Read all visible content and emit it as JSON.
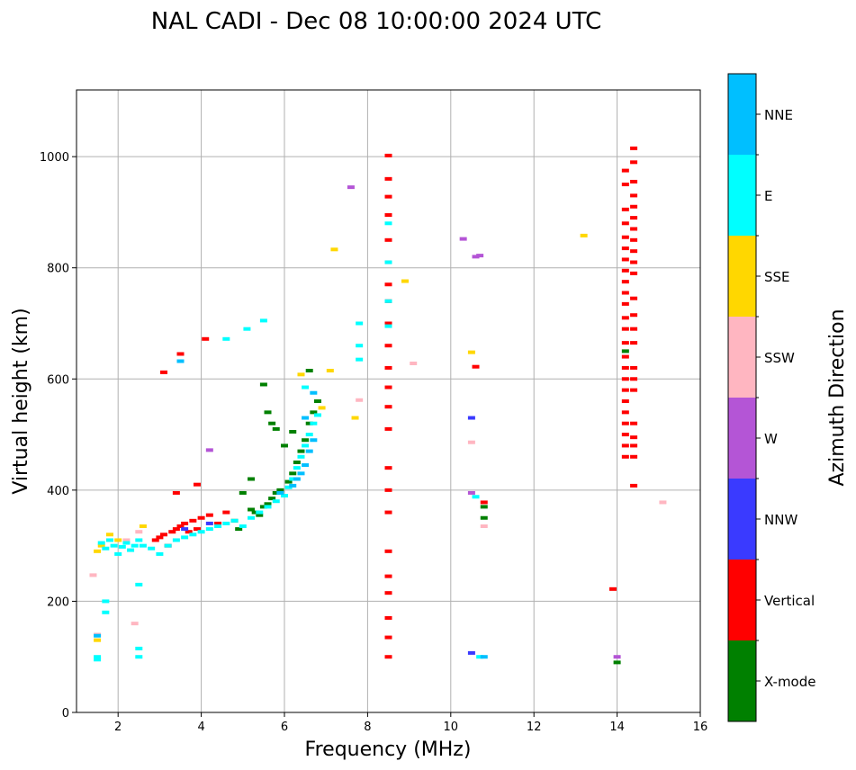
{
  "chart_data": {
    "type": "scatter",
    "title": "NAL CADI - Dec 08 10:00:00 2024 UTC",
    "xlabel": "Frequency (MHz)",
    "ylabel": "Virtual height (km)",
    "xlim": [
      1,
      16
    ],
    "ylim": [
      0,
      1120
    ],
    "xticks": [
      2,
      4,
      6,
      8,
      10,
      12,
      14,
      16
    ],
    "yticks": [
      0,
      200,
      400,
      600,
      800,
      1000
    ],
    "grid": true,
    "colorbar": {
      "label": "Azimuth Direction",
      "categories": [
        {
          "name": "X-mode",
          "color": "#008000"
        },
        {
          "name": "Vertical",
          "color": "#ff0000"
        },
        {
          "name": "NNW",
          "color": "#3a3aff"
        },
        {
          "name": "W",
          "color": "#b455d6"
        },
        {
          "name": "SSW",
          "color": "#ffb6c1"
        },
        {
          "name": "SSE",
          "color": "#ffd700"
        },
        {
          "name": "E",
          "color": "#00ffff"
        },
        {
          "name": "NNE",
          "color": "#00bfff"
        }
      ]
    },
    "series": [
      {
        "name": "X-mode",
        "points": [
          [
            5.2,
            365
          ],
          [
            5.3,
            360
          ],
          [
            5.4,
            355
          ],
          [
            5.5,
            370
          ],
          [
            5.6,
            375
          ],
          [
            5.7,
            385
          ],
          [
            5.8,
            395
          ],
          [
            5.9,
            400
          ],
          [
            6.1,
            415
          ],
          [
            6.2,
            430
          ],
          [
            6.3,
            450
          ],
          [
            6.4,
            470
          ],
          [
            6.5,
            490
          ],
          [
            6.6,
            520
          ],
          [
            6.7,
            540
          ],
          [
            6.8,
            560
          ],
          [
            5.5,
            590
          ],
          [
            5.6,
            540
          ],
          [
            5.7,
            520
          ],
          [
            5.8,
            510
          ],
          [
            6.0,
            480
          ],
          [
            6.6,
            615
          ],
          [
            6.2,
            505
          ],
          [
            4.8,
            345
          ],
          [
            4.9,
            330
          ],
          [
            5.0,
            395
          ],
          [
            5.2,
            420
          ],
          [
            10.8,
            370
          ],
          [
            10.8,
            350
          ],
          [
            14,
            90
          ],
          [
            14.2,
            650
          ]
        ]
      },
      {
        "name": "Vertical",
        "points": [
          [
            2.9,
            310
          ],
          [
            3.0,
            315
          ],
          [
            3.1,
            320
          ],
          [
            3.2,
            300
          ],
          [
            3.3,
            325
          ],
          [
            3.4,
            330
          ],
          [
            3.5,
            335
          ],
          [
            3.6,
            340
          ],
          [
            3.7,
            325
          ],
          [
            3.8,
            345
          ],
          [
            3.9,
            330
          ],
          [
            4.0,
            350
          ],
          [
            4.2,
            355
          ],
          [
            4.4,
            340
          ],
          [
            4.6,
            360
          ],
          [
            3.1,
            612
          ],
          [
            3.5,
            645
          ],
          [
            4.1,
            672
          ],
          [
            3.4,
            395
          ],
          [
            3.9,
            410
          ],
          [
            8.5,
            1002
          ],
          [
            8.5,
            960
          ],
          [
            8.5,
            928
          ],
          [
            8.5,
            895
          ],
          [
            8.5,
            850
          ],
          [
            8.5,
            810
          ],
          [
            8.5,
            770
          ],
          [
            8.5,
            740
          ],
          [
            8.5,
            700
          ],
          [
            8.5,
            660
          ],
          [
            8.5,
            620
          ],
          [
            8.5,
            585
          ],
          [
            8.5,
            550
          ],
          [
            8.5,
            510
          ],
          [
            8.5,
            440
          ],
          [
            8.5,
            400
          ],
          [
            8.5,
            360
          ],
          [
            8.5,
            290
          ],
          [
            8.5,
            245
          ],
          [
            8.5,
            215
          ],
          [
            8.5,
            170
          ],
          [
            8.5,
            135
          ],
          [
            8.5,
            100
          ],
          [
            10.6,
            622
          ],
          [
            10.8,
            378
          ],
          [
            13.9,
            222
          ],
          [
            14.2,
            975
          ],
          [
            14.2,
            950
          ],
          [
            14.2,
            905
          ],
          [
            14.2,
            880
          ],
          [
            14.2,
            855
          ],
          [
            14.2,
            835
          ],
          [
            14.2,
            815
          ],
          [
            14.2,
            795
          ],
          [
            14.2,
            775
          ],
          [
            14.2,
            755
          ],
          [
            14.2,
            735
          ],
          [
            14.2,
            710
          ],
          [
            14.2,
            690
          ],
          [
            14.2,
            665
          ],
          [
            14.2,
            640
          ],
          [
            14.2,
            620
          ],
          [
            14.2,
            600
          ],
          [
            14.2,
            580
          ],
          [
            14.2,
            560
          ],
          [
            14.2,
            540
          ],
          [
            14.2,
            520
          ],
          [
            14.2,
            500
          ],
          [
            14.2,
            480
          ],
          [
            14.2,
            460
          ],
          [
            14.4,
            1015
          ],
          [
            14.4,
            990
          ],
          [
            14.4,
            955
          ],
          [
            14.4,
            930
          ],
          [
            14.4,
            910
          ],
          [
            14.4,
            890
          ],
          [
            14.4,
            870
          ],
          [
            14.4,
            850
          ],
          [
            14.4,
            830
          ],
          [
            14.4,
            810
          ],
          [
            14.4,
            790
          ],
          [
            14.4,
            745
          ],
          [
            14.4,
            715
          ],
          [
            14.4,
            690
          ],
          [
            14.4,
            665
          ],
          [
            14.4,
            620
          ],
          [
            14.4,
            600
          ],
          [
            14.4,
            580
          ],
          [
            14.4,
            520
          ],
          [
            14.4,
            495
          ],
          [
            14.4,
            480
          ],
          [
            14.4,
            460
          ],
          [
            14.4,
            408
          ]
        ]
      },
      {
        "name": "NNW",
        "points": [
          [
            10.5,
            530
          ],
          [
            10.5,
            107
          ],
          [
            3.6,
            330
          ],
          [
            4.2,
            340
          ]
        ]
      },
      {
        "name": "W",
        "points": [
          [
            7.6,
            945
          ],
          [
            10.6,
            820
          ],
          [
            10.7,
            822
          ],
          [
            10.3,
            852
          ],
          [
            4.2,
            472
          ],
          [
            10.5,
            395
          ],
          [
            14,
            100
          ]
        ]
      },
      {
        "name": "SSW",
        "points": [
          [
            9.1,
            628
          ],
          [
            15.1,
            378
          ],
          [
            10.5,
            486
          ],
          [
            10.8,
            335
          ],
          [
            7.8,
            562
          ],
          [
            1.4,
            247
          ],
          [
            2.4,
            160
          ],
          [
            1.5,
            140
          ],
          [
            2.2,
            310
          ],
          [
            2.5,
            325
          ]
        ]
      },
      {
        "name": "SSE",
        "points": [
          [
            8.9,
            776
          ],
          [
            13.2,
            858
          ],
          [
            10.5,
            648
          ],
          [
            6.4,
            608
          ],
          [
            7.7,
            530
          ],
          [
            7.2,
            833
          ],
          [
            1.6,
            300
          ],
          [
            1.8,
            320
          ],
          [
            2.0,
            310
          ],
          [
            1.5,
            130
          ],
          [
            2.6,
            335
          ],
          [
            1.5,
            290
          ],
          [
            6.9,
            548
          ],
          [
            7.1,
            615
          ]
        ]
      },
      {
        "name": "E",
        "points": [
          [
            1.6,
            305
          ],
          [
            1.7,
            295
          ],
          [
            1.8,
            310
          ],
          [
            1.9,
            300
          ],
          [
            2.0,
            285
          ],
          [
            2.1,
            298
          ],
          [
            2.2,
            305
          ],
          [
            2.3,
            292
          ],
          [
            2.4,
            300
          ],
          [
            2.5,
            310
          ],
          [
            2.6,
            300
          ],
          [
            2.8,
            295
          ],
          [
            3.0,
            285
          ],
          [
            3.2,
            300
          ],
          [
            3.4,
            310
          ],
          [
            3.6,
            315
          ],
          [
            3.8,
            320
          ],
          [
            4.0,
            325
          ],
          [
            4.2,
            330
          ],
          [
            4.4,
            335
          ],
          [
            4.6,
            340
          ],
          [
            4.8,
            345
          ],
          [
            5.0,
            335
          ],
          [
            5.2,
            350
          ],
          [
            5.4,
            360
          ],
          [
            5.6,
            370
          ],
          [
            5.8,
            380
          ],
          [
            6.0,
            390
          ],
          [
            6.1,
            405
          ],
          [
            6.2,
            420
          ],
          [
            6.3,
            440
          ],
          [
            6.4,
            460
          ],
          [
            6.5,
            480
          ],
          [
            6.6,
            500
          ],
          [
            6.7,
            520
          ],
          [
            6.8,
            535
          ],
          [
            2.5,
            230
          ],
          [
            2.5,
            100
          ],
          [
            2.5,
            115
          ],
          [
            1.5,
            100
          ],
          [
            1.5,
            95
          ],
          [
            1.7,
            180
          ],
          [
            1.7,
            200
          ],
          [
            7.8,
            700
          ],
          [
            7.8,
            660
          ],
          [
            7.8,
            635
          ],
          [
            8.5,
            880
          ],
          [
            8.5,
            810
          ],
          [
            8.5,
            740
          ],
          [
            8.5,
            695
          ],
          [
            5.5,
            705
          ],
          [
            5.1,
            690
          ],
          [
            4.6,
            672
          ],
          [
            10.6,
            388
          ],
          [
            10.7,
            100
          ],
          [
            6.5,
            585
          ]
        ]
      },
      {
        "name": "NNE",
        "points": [
          [
            3.5,
            632
          ],
          [
            10.8,
            100
          ],
          [
            6.3,
            420
          ],
          [
            6.4,
            430
          ],
          [
            6.5,
            445
          ],
          [
            6.6,
            470
          ],
          [
            6.7,
            490
          ],
          [
            6.2,
            408
          ],
          [
            6.5,
            530
          ],
          [
            6.7,
            575
          ],
          [
            5.9,
            395
          ],
          [
            1.5,
            138
          ]
        ]
      }
    ]
  }
}
